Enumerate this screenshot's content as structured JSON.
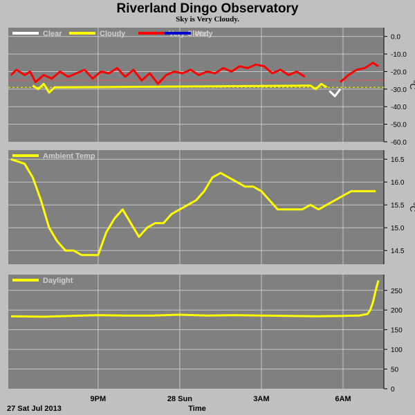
{
  "title": "Riverland Dingo Observatory",
  "subtitle": "Sky is Very Cloudy.",
  "xlabel": "Time",
  "date_label": "27 Sat Jul 2013",
  "colors": {
    "background": "#c0c0c0",
    "plot_bg": "#808080",
    "grid": "#c8c8c8",
    "clear": "#ffffff",
    "cloudy": "#ffff00",
    "very_cloudy": "#ff0000",
    "wet": "#0000cc"
  },
  "chart_data": [
    {
      "type": "line",
      "name": "sky-temperature",
      "x_unit": "hours since 6PM",
      "x_ticks": [
        {
          "x": 3,
          "label": "9PM"
        },
        {
          "x": 6,
          "label": "28 Sun"
        },
        {
          "x": 9,
          "label": "3AM"
        },
        {
          "x": 12,
          "label": "6AM"
        }
      ],
      "ylim": [
        -60,
        5
      ],
      "y_ticks": [
        0,
        -10,
        -20,
        -30,
        -40,
        -50,
        -60
      ],
      "ylabel": "°C",
      "legend": [
        "Clear",
        "Cloudy",
        "Very Cloudy",
        "Wet"
      ],
      "thresholds": [
        {
          "value": -25,
          "color": "#ff4040"
        },
        {
          "value": -29,
          "color": "#ffff00"
        }
      ],
      "series": [
        {
          "name": "Very Cloudy",
          "color": "#ff0000",
          "x": [
            -0.2,
            0.0,
            0.3,
            0.5,
            0.7,
            1.0,
            1.3,
            1.6,
            1.9,
            2.2,
            2.5,
            2.8,
            3.1,
            3.4,
            3.7,
            4.0,
            4.3,
            4.6,
            4.9,
            5.2,
            5.5,
            5.8,
            6.1,
            6.4,
            6.7,
            7.0,
            7.3,
            7.6,
            7.9,
            8.2,
            8.5,
            8.8,
            9.1,
            9.4,
            9.7,
            10.0,
            10.3,
            10.6
          ],
          "y": [
            -22,
            -19,
            -22,
            -20,
            -26,
            -22,
            -24,
            -20,
            -23,
            -21,
            -19,
            -24,
            -20,
            -21,
            -18,
            -23,
            -19,
            -25,
            -21,
            -27,
            -22,
            -20,
            -21,
            -19,
            -22,
            -20,
            -21,
            -18,
            -20,
            -17,
            -18,
            -16,
            -17,
            -21,
            -19,
            -22,
            -20,
            -23
          ]
        },
        {
          "name": "Cloudy",
          "color": "#ffff00",
          "x": [
            0.6,
            0.8,
            1.0,
            1.2,
            1.4,
            10.8,
            11.0,
            11.2,
            11.4
          ],
          "y": [
            -28,
            -30,
            -27,
            -32,
            -29,
            -28,
            -30,
            -27,
            -29
          ]
        },
        {
          "name": "Clear",
          "color": "#ffffff",
          "x": [
            11.5,
            11.7,
            11.9
          ],
          "y": [
            -31,
            -34,
            -30
          ]
        },
        {
          "name": "Very Cloudy",
          "color": "#ff0000",
          "x": [
            11.9,
            12.2,
            12.5,
            12.8,
            13.1,
            13.3
          ],
          "y": [
            -26,
            -22,
            -19,
            -18,
            -15,
            -17
          ]
        }
      ]
    },
    {
      "type": "line",
      "name": "ambient-temperature",
      "ylim": [
        14.2,
        16.7
      ],
      "y_ticks": [
        16.5,
        16.0,
        15.5,
        15.0,
        14.5
      ],
      "ylabel": "°C",
      "legend": [
        "Ambient Temp"
      ],
      "series": [
        {
          "name": "Ambient Temp",
          "color": "#ffff00",
          "x": [
            -0.2,
            0.3,
            0.6,
            0.9,
            1.2,
            1.5,
            1.8,
            2.1,
            2.4,
            2.7,
            3.0,
            3.3,
            3.6,
            3.9,
            4.2,
            4.5,
            4.8,
            5.1,
            5.4,
            5.7,
            6.0,
            6.3,
            6.6,
            6.9,
            7.2,
            7.5,
            7.8,
            8.1,
            8.4,
            8.7,
            9.0,
            9.3,
            9.6,
            9.9,
            10.2,
            10.5,
            10.8,
            11.1,
            11.4,
            11.7,
            12.0,
            12.3,
            12.6,
            12.9,
            13.2
          ],
          "y": [
            16.5,
            16.4,
            16.1,
            15.6,
            15.0,
            14.7,
            14.5,
            14.5,
            14.4,
            14.4,
            14.4,
            14.9,
            15.2,
            15.4,
            15.1,
            14.8,
            15.0,
            15.1,
            15.1,
            15.3,
            15.4,
            15.5,
            15.6,
            15.8,
            16.1,
            16.2,
            16.1,
            16.0,
            15.9,
            15.9,
            15.8,
            15.6,
            15.4,
            15.4,
            15.4,
            15.4,
            15.5,
            15.4,
            15.5,
            15.6,
            15.7,
            15.8,
            15.8,
            15.8,
            15.8
          ]
        }
      ]
    },
    {
      "type": "line",
      "name": "daylight",
      "ylim": [
        0,
        290
      ],
      "y_ticks": [
        250,
        200,
        150,
        100,
        50,
        0
      ],
      "legend": [
        "Daylight"
      ],
      "series": [
        {
          "name": "Daylight",
          "color": "#ffff00",
          "x": [
            -0.2,
            1.0,
            2.0,
            3.0,
            4.0,
            5.0,
            6.0,
            7.0,
            8.0,
            9.0,
            10.0,
            11.0,
            12.0,
            12.6,
            12.9,
            13.0,
            13.1,
            13.2,
            13.3
          ],
          "y": [
            184,
            183,
            185,
            187,
            186,
            186,
            188,
            186,
            187,
            186,
            185,
            184,
            185,
            186,
            190,
            200,
            220,
            250,
            275
          ]
        }
      ]
    }
  ]
}
